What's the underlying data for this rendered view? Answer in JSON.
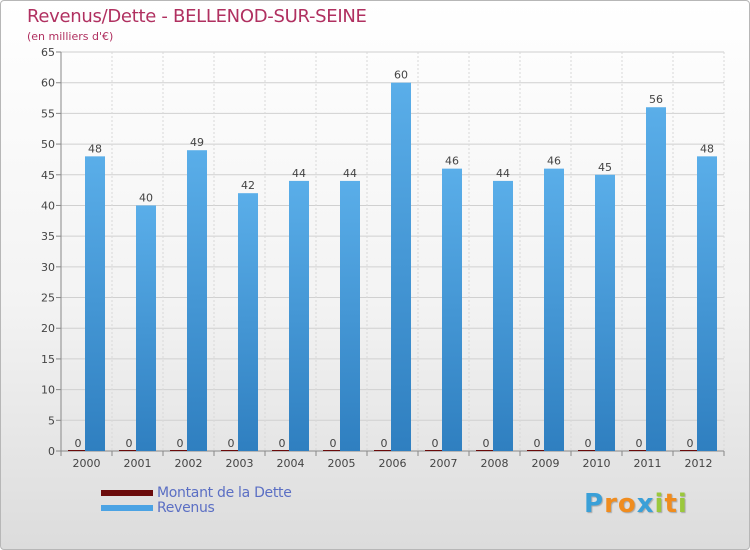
{
  "header": {
    "title": "Revenus/Dette - BELLENOD-SUR-SEINE",
    "subtitle": "(en milliers d'€)"
  },
  "legend": {
    "items": [
      {
        "label": "Montant de la Dette",
        "color": "#6b0b0b"
      },
      {
        "label": "Revenus",
        "color": "#4ba3e4"
      }
    ]
  },
  "logo": {
    "text": "Proxiti",
    "letters": [
      {
        "ch": "P",
        "color": "#3aa0d8"
      },
      {
        "ch": "r",
        "color": "#f08c1e"
      },
      {
        "ch": "o",
        "color": "#f08c1e"
      },
      {
        "ch": "x",
        "color": "#3aa0d8"
      },
      {
        "ch": "i",
        "color": "#9bc83c"
      },
      {
        "ch": "t",
        "color": "#f08c1e"
      },
      {
        "ch": "i",
        "color": "#9bc83c"
      }
    ]
  },
  "chart_data": {
    "type": "bar",
    "title": "Revenus/Dette - BELLENOD-SUR-SEINE",
    "subtitle": "(en milliers d'€)",
    "xlabel": "",
    "ylabel": "",
    "ylim": [
      0,
      65
    ],
    "yticks": [
      0,
      5,
      10,
      15,
      20,
      25,
      30,
      35,
      40,
      45,
      50,
      55,
      60,
      65
    ],
    "grid": true,
    "legend_position": "bottom-left",
    "categories": [
      "2000",
      "2001",
      "2002",
      "2003",
      "2004",
      "2005",
      "2006",
      "2007",
      "2008",
      "2009",
      "2010",
      "2011",
      "2012"
    ],
    "series": [
      {
        "name": "Montant de la Dette",
        "color": "#6b0b0b",
        "values": [
          0,
          0,
          0,
          0,
          0,
          0,
          0,
          0,
          0,
          0,
          0,
          0,
          0
        ]
      },
      {
        "name": "Revenus",
        "color": "#4ba3e4",
        "values": [
          48,
          40,
          49,
          42,
          44,
          44,
          60,
          46,
          44,
          46,
          45,
          56,
          48
        ]
      }
    ]
  }
}
